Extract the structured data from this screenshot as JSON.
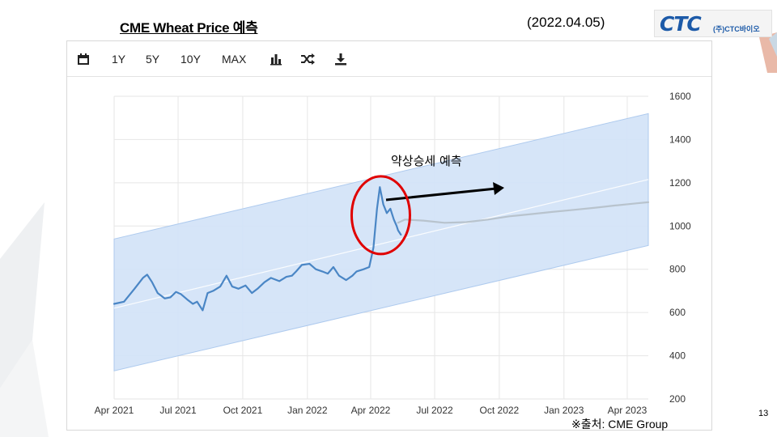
{
  "slide": {
    "title": "CME Wheat Price 예측",
    "date": "(2022.04.05)",
    "source": "※출처: CME Group",
    "page_number": "13"
  },
  "logo": {
    "mark": "CTC",
    "sub": "(주)CTC바이오"
  },
  "toolbar": {
    "calendar_icon": "calendar-icon",
    "ranges": [
      "1Y",
      "5Y",
      "10Y",
      "MAX"
    ],
    "bar_chart_icon": "bar-chart-icon",
    "shuffle_icon": "shuffle-icon",
    "download_icon": "download-icon"
  },
  "colors": {
    "price_line": "#4a86c5",
    "forecast_line": "#b8c3cd",
    "band_fill": "#d4e4f8",
    "band_edge": "#aac8ee",
    "annotation_circle": "#e00000",
    "accent_blue": "#1c5aa8"
  },
  "chart_data": {
    "type": "line",
    "x_labels": [
      "Apr 2021",
      "Jul 2021",
      "Oct 2021",
      "Jan 2022",
      "Apr 2022",
      "Jul 2022",
      "Oct 2022",
      "Jan 2023",
      "Apr 2023"
    ],
    "x_range": [
      "2021-04",
      "2023-05"
    ],
    "ylim": [
      200,
      1600
    ],
    "y_ticks": [
      200,
      400,
      600,
      800,
      1000,
      1200,
      1400,
      1600
    ],
    "y_axis_side": "right",
    "grid": true,
    "series": [
      {
        "role": "price",
        "points": [
          [
            "2021-04-01",
            640
          ],
          [
            "2021-04-15",
            650
          ],
          [
            "2021-04-30",
            710
          ],
          [
            "2021-05-12",
            760
          ],
          [
            "2021-05-18",
            775
          ],
          [
            "2021-05-25",
            740
          ],
          [
            "2021-06-02",
            690
          ],
          [
            "2021-06-12",
            665
          ],
          [
            "2021-06-20",
            670
          ],
          [
            "2021-06-28",
            695
          ],
          [
            "2021-07-05",
            685
          ],
          [
            "2021-07-14",
            660
          ],
          [
            "2021-07-22",
            640
          ],
          [
            "2021-07-28",
            650
          ],
          [
            "2021-08-05",
            610
          ],
          [
            "2021-08-12",
            690
          ],
          [
            "2021-08-20",
            700
          ],
          [
            "2021-08-30",
            720
          ],
          [
            "2021-09-08",
            770
          ],
          [
            "2021-09-16",
            720
          ],
          [
            "2021-09-25",
            710
          ],
          [
            "2021-10-05",
            725
          ],
          [
            "2021-10-14",
            690
          ],
          [
            "2021-10-22",
            710
          ],
          [
            "2021-11-01",
            740
          ],
          [
            "2021-11-10",
            760
          ],
          [
            "2021-11-22",
            745
          ],
          [
            "2021-12-02",
            765
          ],
          [
            "2021-12-10",
            770
          ],
          [
            "2021-12-16",
            790
          ],
          [
            "2021-12-24",
            820
          ],
          [
            "2022-01-04",
            825
          ],
          [
            "2022-01-13",
            800
          ],
          [
            "2022-01-22",
            790
          ],
          [
            "2022-01-30",
            780
          ],
          [
            "2022-02-07",
            810
          ],
          [
            "2022-02-15",
            770
          ],
          [
            "2022-02-25",
            750
          ],
          [
            "2022-03-06",
            770
          ],
          [
            "2022-03-12",
            790
          ],
          [
            "2022-03-22",
            800
          ],
          [
            "2022-03-30",
            810
          ],
          [
            "2022-04-05",
            900
          ],
          [
            "2022-04-10",
            1080
          ],
          [
            "2022-04-14",
            1180
          ],
          [
            "2022-04-19",
            1100
          ],
          [
            "2022-04-24",
            1060
          ],
          [
            "2022-04-29",
            1080
          ],
          [
            "2022-05-04",
            1030
          ],
          [
            "2022-05-08",
            1000
          ],
          [
            "2022-05-10",
            980
          ],
          [
            "2022-05-14",
            960
          ]
        ]
      },
      {
        "role": "forecast",
        "points": [
          [
            "2022-05-10",
            1015
          ],
          [
            "2022-05-20",
            1030
          ],
          [
            "2022-06-15",
            1025
          ],
          [
            "2022-07-15",
            1015
          ],
          [
            "2022-08-15",
            1018
          ],
          [
            "2022-09-15",
            1030
          ],
          [
            "2022-10-15",
            1045
          ],
          [
            "2022-11-15",
            1055
          ],
          [
            "2022-12-15",
            1065
          ],
          [
            "2023-01-15",
            1075
          ],
          [
            "2023-02-15",
            1085
          ],
          [
            "2023-03-15",
            1095
          ],
          [
            "2023-04-15",
            1105
          ],
          [
            "2023-05-01",
            1110
          ]
        ]
      }
    ],
    "trend_band": {
      "start": "2021-04-01",
      "end": "2023-05-01",
      "upper": [
        940,
        1520
      ],
      "lower": [
        330,
        910
      ],
      "center": [
        620,
        1215
      ]
    },
    "annotations": [
      {
        "text": "약상승세 예측",
        "arrow": true
      },
      {
        "shape": "red-ellipse",
        "date": "2022-04-20",
        "value": 1050
      }
    ]
  }
}
